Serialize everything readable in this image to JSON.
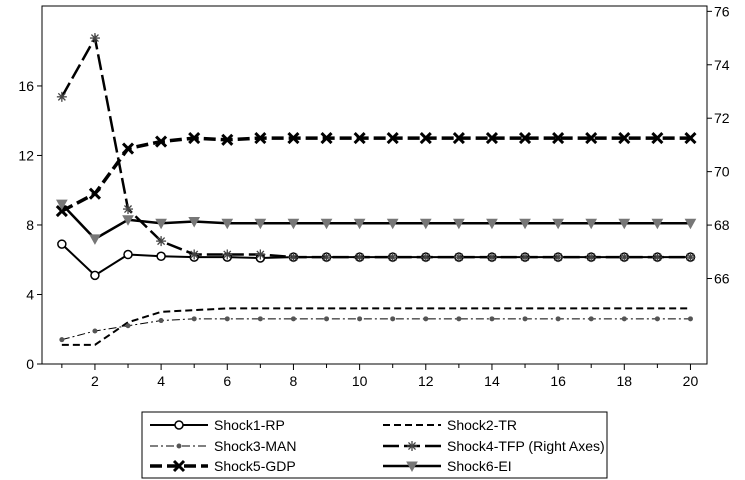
{
  "chart_data": {
    "type": "line",
    "x": [
      1,
      2,
      3,
      4,
      5,
      6,
      7,
      8,
      9,
      10,
      11,
      12,
      13,
      14,
      15,
      16,
      17,
      18,
      19,
      20
    ],
    "x_ticks": [
      2,
      4,
      6,
      8,
      10,
      12,
      14,
      16,
      18,
      20
    ],
    "xlim": [
      0.4,
      20.5
    ],
    "left_axis": {
      "ylim": [
        0,
        20.6
      ],
      "ticks": [
        0,
        4,
        8,
        12,
        16
      ],
      "tick_labels": [
        "0",
        "4",
        "8",
        "12",
        "16"
      ]
    },
    "right_axis": {
      "ylim": [
        62.8,
        76.2
      ],
      "ticks": [
        66,
        68,
        70,
        72,
        74,
        76
      ],
      "tick_labels": [
        "66",
        "68",
        "70",
        "72",
        "74",
        "76"
      ]
    },
    "grid": false,
    "legend_position": "bottom",
    "series": [
      {
        "name": "Shock1-RP",
        "axis": "left",
        "style": "solid-circle",
        "values": [
          6.9,
          5.1,
          6.3,
          6.2,
          6.15,
          6.15,
          6.1,
          6.15,
          6.15,
          6.15,
          6.15,
          6.15,
          6.15,
          6.15,
          6.15,
          6.15,
          6.15,
          6.15,
          6.15,
          6.15
        ]
      },
      {
        "name": "Shock2-TR",
        "axis": "left",
        "style": "dashed",
        "values": [
          1.1,
          1.1,
          2.4,
          3.0,
          3.1,
          3.2,
          3.2,
          3.2,
          3.2,
          3.2,
          3.2,
          3.2,
          3.2,
          3.2,
          3.2,
          3.2,
          3.2,
          3.2,
          3.2,
          3.2
        ]
      },
      {
        "name": "Shock3-MAN",
        "axis": "left",
        "style": "dashdot-dot",
        "values": [
          1.4,
          1.9,
          2.2,
          2.5,
          2.6,
          2.6,
          2.6,
          2.6,
          2.6,
          2.6,
          2.6,
          2.6,
          2.6,
          2.6,
          2.6,
          2.6,
          2.6,
          2.6,
          2.6,
          2.6
        ]
      },
      {
        "name": "Shock4-TFP (Right Axes)",
        "axis": "right",
        "style": "longdash-star",
        "values": [
          72.8,
          75.0,
          68.6,
          67.4,
          66.9,
          66.9,
          66.9,
          66.8,
          66.8,
          66.8,
          66.8,
          66.8,
          66.8,
          66.8,
          66.8,
          66.8,
          66.8,
          66.8,
          66.8,
          66.8
        ]
      },
      {
        "name": "Shock5-GDP",
        "axis": "left",
        "style": "thick-dashed-x",
        "values": [
          8.8,
          9.8,
          12.4,
          12.8,
          13.0,
          12.9,
          13.0,
          13.0,
          13.0,
          13.0,
          13.0,
          13.0,
          13.0,
          13.0,
          13.0,
          13.0,
          13.0,
          13.0,
          13.0,
          13.0
        ]
      },
      {
        "name": "Shock6-EI",
        "axis": "left",
        "style": "solid-triangle",
        "values": [
          9.2,
          7.2,
          8.3,
          8.1,
          8.2,
          8.1,
          8.1,
          8.1,
          8.1,
          8.1,
          8.1,
          8.1,
          8.1,
          8.1,
          8.1,
          8.1,
          8.1,
          8.1,
          8.1,
          8.1
        ]
      }
    ]
  }
}
